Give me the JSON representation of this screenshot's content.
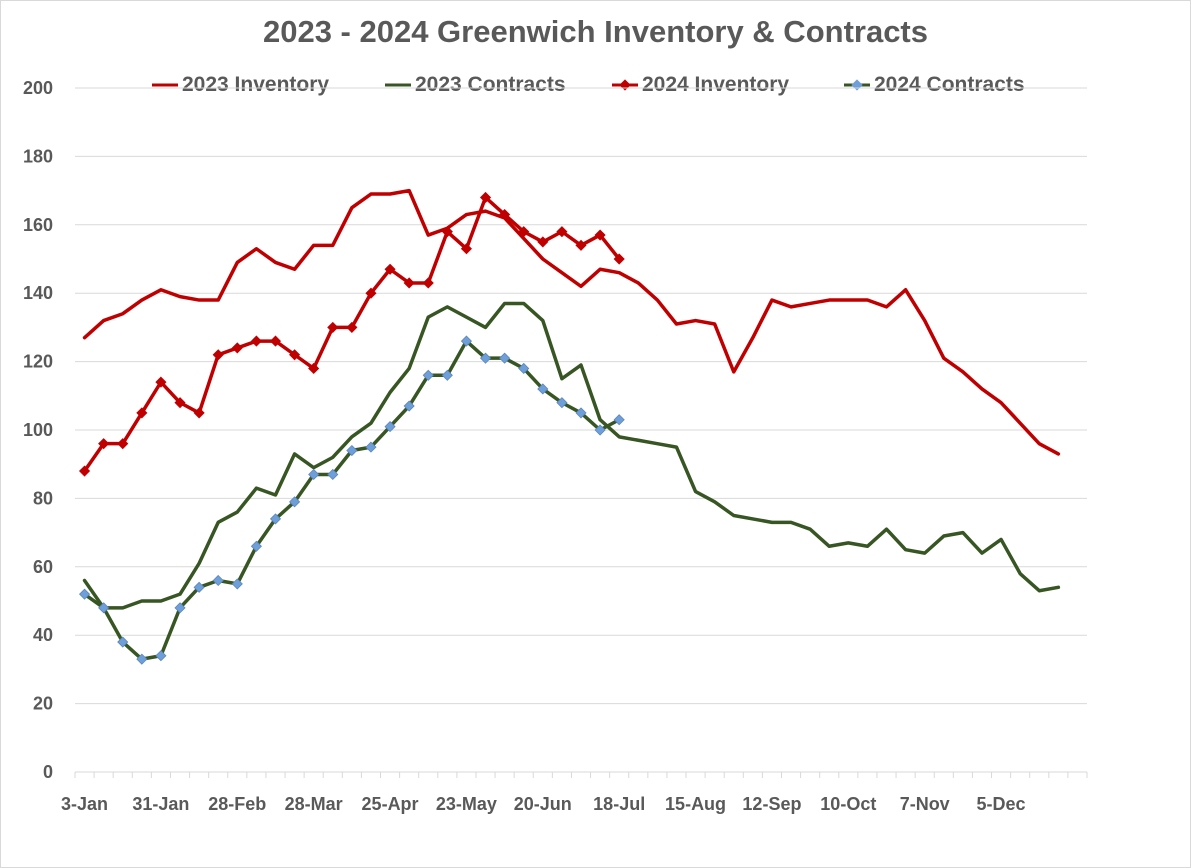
{
  "chart_data": {
    "type": "line",
    "title": "2023 -  2024 Greenwich Inventory & Contracts",
    "xlabel": "",
    "ylabel": "",
    "ylim": [
      0,
      200
    ],
    "y_ticks": [
      0,
      20,
      40,
      60,
      80,
      100,
      120,
      140,
      160,
      180,
      200
    ],
    "grid": "horizontal",
    "legend_position": "top",
    "x_tick_labels": [
      "3-Jan",
      "31-Jan",
      "28-Feb",
      "28-Mar",
      "25-Apr",
      "23-May",
      "20-Jun",
      "18-Jul",
      "15-Aug",
      "12-Sep",
      "10-Oct",
      "7-Nov",
      "5-Dec"
    ],
    "x_weeks": 53,
    "series": [
      {
        "name": "2023 Inventory",
        "color": "#c00000",
        "marker": "none",
        "values": [
          127,
          132,
          134,
          138,
          141,
          139,
          138,
          138,
          149,
          153,
          149,
          147,
          154,
          154,
          165,
          169,
          169,
          170,
          157,
          159,
          163,
          164,
          162,
          156,
          150,
          146,
          142,
          147,
          146,
          143,
          138,
          131,
          132,
          131,
          117,
          127,
          138,
          136,
          137,
          138,
          138,
          138,
          136,
          141,
          132,
          121,
          117,
          112,
          108,
          102,
          96,
          93
        ]
      },
      {
        "name": "2023 Contracts",
        "color": "#375623",
        "marker": "none",
        "values": [
          56,
          48,
          48,
          50,
          50,
          52,
          61,
          73,
          76,
          83,
          81,
          93,
          89,
          92,
          98,
          102,
          111,
          118,
          133,
          136,
          133,
          130,
          137,
          137,
          132,
          115,
          119,
          103,
          98,
          97,
          96,
          95,
          82,
          79,
          75,
          74,
          73,
          73,
          71,
          66,
          67,
          66,
          71,
          65,
          64,
          69,
          70,
          64,
          68,
          58,
          53,
          54
        ]
      },
      {
        "name": "2024 Inventory",
        "color": "#c00000",
        "marker": "diamond",
        "marker_color": "#c00000",
        "values": [
          88,
          96,
          96,
          105,
          114,
          108,
          105,
          122,
          124,
          126,
          126,
          122,
          118,
          130,
          130,
          140,
          147,
          143,
          143,
          158,
          153,
          168,
          163,
          158,
          155,
          158,
          154,
          157,
          150
        ]
      },
      {
        "name": "2024 Contracts",
        "color": "#375623",
        "marker": "diamond",
        "marker_color": "#6f9fd8",
        "values": [
          52,
          48,
          38,
          33,
          34,
          48,
          54,
          56,
          55,
          66,
          74,
          79,
          87,
          87,
          94,
          95,
          101,
          107,
          116,
          116,
          126,
          121,
          121,
          118,
          112,
          108,
          105,
          100,
          103
        ]
      }
    ]
  }
}
